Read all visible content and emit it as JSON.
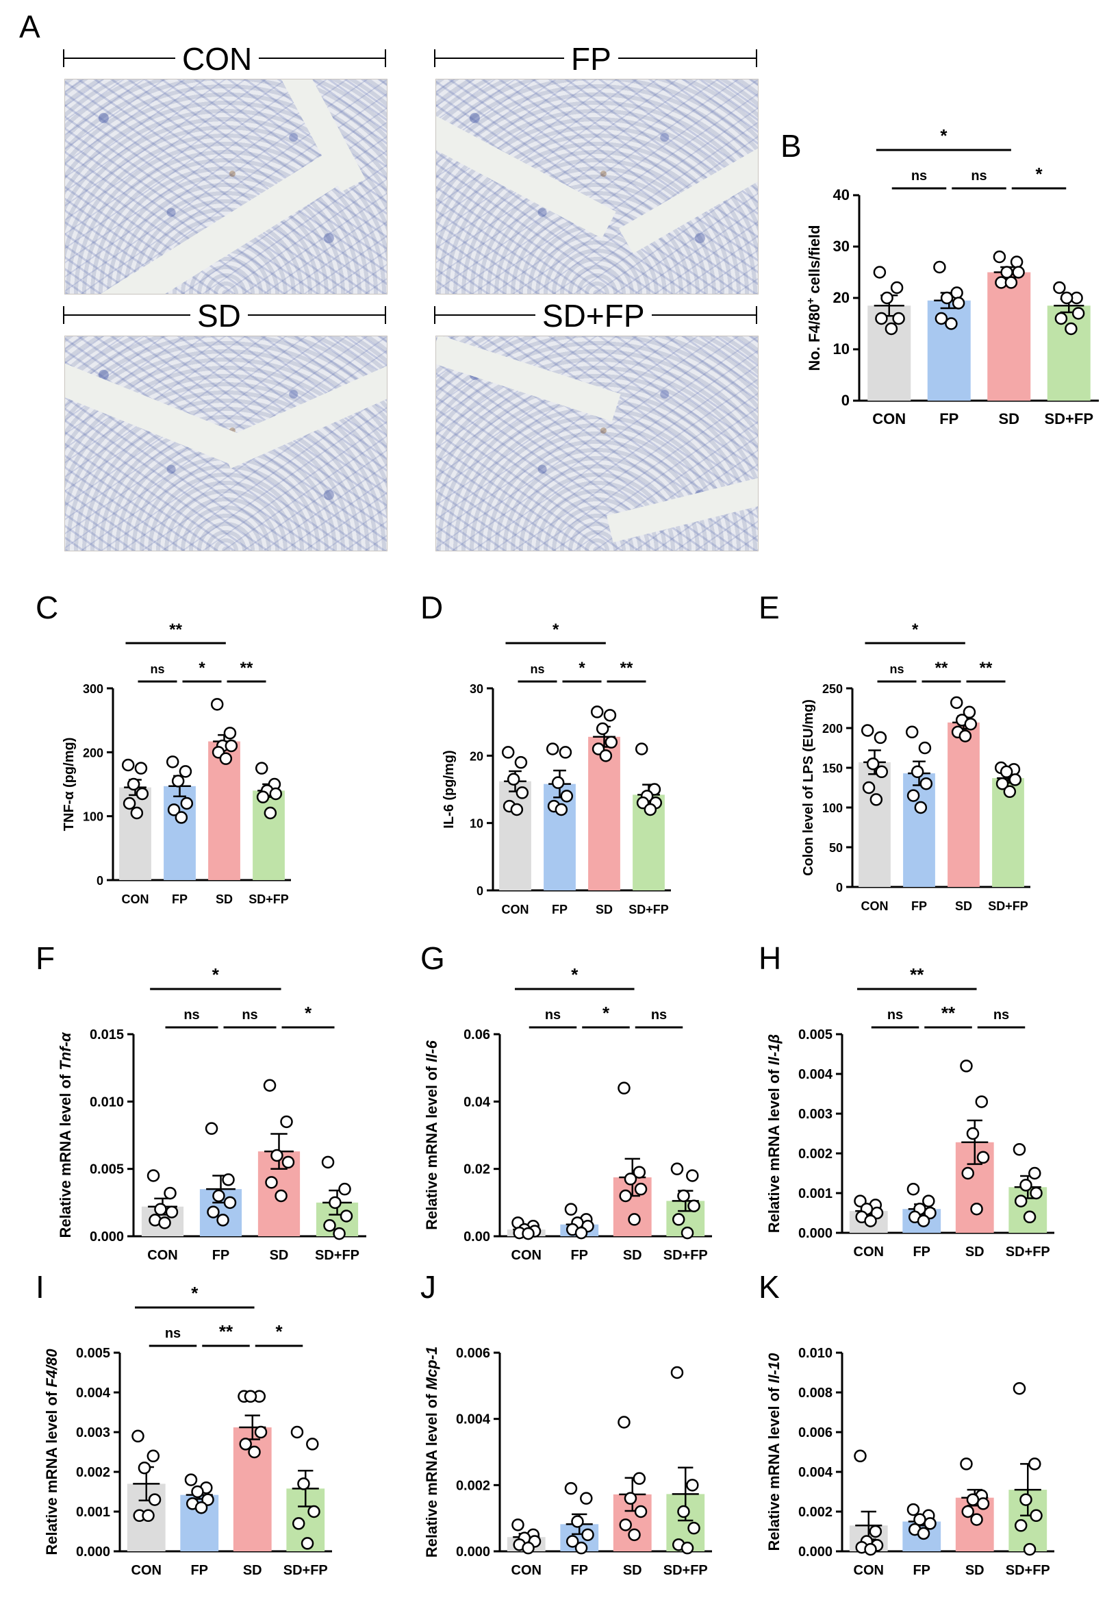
{
  "panel_labels": {
    "A": "A",
    "B": "B",
    "C": "C",
    "D": "D",
    "E": "E",
    "F": "F",
    "G": "G",
    "H": "H",
    "I": "I",
    "J": "J",
    "K": "K"
  },
  "histology": [
    {
      "label": "CON"
    },
    {
      "label": "FP"
    },
    {
      "label": "SD"
    },
    {
      "label": "SD+FP"
    }
  ],
  "colors": {
    "CON": "#dcdcdc",
    "FP": "#a8c8f0",
    "SD": "#f4a8a8",
    "SD+FP": "#bfe3a8"
  },
  "chart_data": [
    {
      "id": "B",
      "type": "bar",
      "categories": [
        "CON",
        "FP",
        "SD",
        "SD+FP"
      ],
      "ylabel_main": "No. F4/80",
      "ylabel_sup": "+",
      "ylabel_tail": " cells/field",
      "ylim": [
        0,
        40
      ],
      "yticks": [
        "0",
        "10",
        "20",
        "30",
        "40"
      ],
      "means": [
        18.5,
        19.5,
        25.0,
        18.5
      ],
      "sems": [
        2.0,
        1.5,
        1.0,
        1.3
      ],
      "points": [
        [
          25,
          22,
          20,
          16,
          16,
          14
        ],
        [
          26,
          21,
          20,
          19,
          16,
          15
        ],
        [
          28,
          27,
          25,
          25,
          23,
          23
        ],
        [
          22,
          20,
          20,
          17,
          16,
          14
        ]
      ],
      "annotations": [
        {
          "from": 0,
          "to": 2,
          "text": "*"
        },
        {
          "from": 0,
          "to": 1,
          "text": "ns"
        },
        {
          "from": 1,
          "to": 2,
          "text": "ns"
        },
        {
          "from": 2,
          "to": 3,
          "text": "*"
        }
      ]
    },
    {
      "id": "C",
      "type": "bar",
      "categories": [
        "CON",
        "FP",
        "SD",
        "SD+FP"
      ],
      "ylabel_main": "TNF-α (pg/mg)",
      "ylim": [
        0,
        300
      ],
      "yticks": [
        "0",
        "100",
        "200",
        "300"
      ],
      "means": [
        145,
        147,
        217,
        140
      ],
      "sems": [
        12,
        16,
        10,
        10
      ],
      "points": [
        [
          180,
          175,
          150,
          135,
          120,
          105
        ],
        [
          185,
          170,
          155,
          120,
          110,
          98
        ],
        [
          275,
          230,
          210,
          210,
          200,
          190
        ],
        [
          175,
          150,
          140,
          135,
          130,
          105
        ]
      ],
      "annotations": [
        {
          "from": 0,
          "to": 2,
          "text": "**"
        },
        {
          "from": 0,
          "to": 1,
          "text": "ns"
        },
        {
          "from": 1,
          "to": 2,
          "text": "*"
        },
        {
          "from": 2,
          "to": 3,
          "text": "**"
        }
      ]
    },
    {
      "id": "D",
      "type": "bar",
      "categories": [
        "CON",
        "FP",
        "SD",
        "SD+FP"
      ],
      "ylabel_main": "IL-6 (pg/mg)",
      "ylim": [
        0,
        30
      ],
      "yticks": [
        "0",
        "10",
        "20",
        "30"
      ],
      "means": [
        16.2,
        15.8,
        22.8,
        14.2
      ],
      "sems": [
        1.5,
        2.0,
        1.5,
        1.5
      ],
      "points": [
        [
          20.5,
          19,
          16.5,
          14.5,
          12.5,
          12
        ],
        [
          21,
          20.5,
          16,
          14,
          12.5,
          12
        ],
        [
          26.5,
          26,
          24,
          22,
          21,
          20
        ],
        [
          21,
          15,
          14,
          13,
          13,
          12
        ]
      ],
      "annotations": [
        {
          "from": 0,
          "to": 2,
          "text": "*"
        },
        {
          "from": 0,
          "to": 1,
          "text": "ns"
        },
        {
          "from": 1,
          "to": 2,
          "text": "*"
        },
        {
          "from": 2,
          "to": 3,
          "text": "**"
        }
      ]
    },
    {
      "id": "E",
      "type": "bar",
      "categories": [
        "CON",
        "FP",
        "SD",
        "SD+FP"
      ],
      "ylabel_main": "Colon level of LPS (EU/mg)",
      "ylim": [
        0,
        250
      ],
      "yticks": [
        "0",
        "50",
        "100",
        "150",
        "200",
        "250"
      ],
      "means": [
        157,
        143,
        207,
        137
      ],
      "sems": [
        15,
        15,
        8,
        6
      ],
      "points": [
        [
          197,
          188,
          155,
          145,
          125,
          110
        ],
        [
          195,
          175,
          145,
          130,
          115,
          100
        ],
        [
          232,
          220,
          210,
          205,
          195,
          190
        ],
        [
          150,
          148,
          145,
          135,
          130,
          120
        ]
      ],
      "annotations": [
        {
          "from": 0,
          "to": 2,
          "text": "*"
        },
        {
          "from": 0,
          "to": 1,
          "text": "ns"
        },
        {
          "from": 1,
          "to": 2,
          "text": "**"
        },
        {
          "from": 2,
          "to": 3,
          "text": "**"
        }
      ]
    },
    {
      "id": "F",
      "type": "bar",
      "categories": [
        "CON",
        "FP",
        "SD",
        "SD+FP"
      ],
      "ylabel_main": "Relative mRNA level of ",
      "ylabel_italic": "Tnf-α",
      "ylim": [
        0,
        0.015
      ],
      "yticks": [
        "0.000",
        "0.005",
        "0.010",
        "0.015"
      ],
      "means": [
        0.0022,
        0.0035,
        0.0063,
        0.0025
      ],
      "sems": [
        0.0006,
        0.001,
        0.0013,
        0.0009
      ],
      "points": [
        [
          0.0045,
          0.0032,
          0.002,
          0.0018,
          0.0012,
          0.001
        ],
        [
          0.008,
          0.0042,
          0.003,
          0.0025,
          0.0018,
          0.0012
        ],
        [
          0.0112,
          0.0085,
          0.006,
          0.0055,
          0.004,
          0.003
        ],
        [
          0.0055,
          0.0035,
          0.0025,
          0.0015,
          0.0008,
          0.0002
        ]
      ],
      "annotations": [
        {
          "from": 0,
          "to": 2,
          "text": "*"
        },
        {
          "from": 0,
          "to": 1,
          "text": "ns"
        },
        {
          "from": 1,
          "to": 2,
          "text": "ns"
        },
        {
          "from": 2,
          "to": 3,
          "text": "*"
        }
      ]
    },
    {
      "id": "G",
      "type": "bar",
      "categories": [
        "CON",
        "FP",
        "SD",
        "SD+FP"
      ],
      "ylabel_main": "Relative mRNA level of ",
      "ylabel_italic": "Il-6",
      "ylim": [
        0,
        0.06
      ],
      "yticks": [
        "0.00",
        "0.02",
        "0.04",
        "0.06"
      ],
      "means": [
        0.002,
        0.0035,
        0.0175,
        0.0105
      ],
      "sems": [
        0.0005,
        0.001,
        0.0055,
        0.003
      ],
      "points": [
        [
          0.004,
          0.003,
          0.002,
          0.0015,
          0.001,
          0.0008
        ],
        [
          0.008,
          0.005,
          0.004,
          0.003,
          0.002,
          0.001
        ],
        [
          0.044,
          0.019,
          0.017,
          0.014,
          0.012,
          0.005
        ],
        [
          0.02,
          0.018,
          0.012,
          0.009,
          0.005,
          0.001
        ]
      ],
      "annotations": [
        {
          "from": 0,
          "to": 2,
          "text": "*"
        },
        {
          "from": 0,
          "to": 1,
          "text": "ns"
        },
        {
          "from": 1,
          "to": 2,
          "text": "*"
        },
        {
          "from": 2,
          "to": 3,
          "text": "ns"
        }
      ]
    },
    {
      "id": "H",
      "type": "bar",
      "categories": [
        "CON",
        "FP",
        "SD",
        "SD+FP"
      ],
      "ylabel_main": "Relative mRNA level of ",
      "ylabel_italic": "Il-1β",
      "ylim": [
        0,
        0.005
      ],
      "yticks": [
        "0.000",
        "0.001",
        "0.002",
        "0.003",
        "0.004",
        "0.005"
      ],
      "means": [
        0.00055,
        0.0006,
        0.00228,
        0.00115
      ],
      "sems": [
        0.0001,
        0.00012,
        0.00055,
        0.00028
      ],
      "points": [
        [
          0.0008,
          0.0007,
          0.0006,
          0.0005,
          0.0004,
          0.0003
        ],
        [
          0.0011,
          0.0008,
          0.0006,
          0.0005,
          0.0004,
          0.0003
        ],
        [
          0.0042,
          0.0033,
          0.0025,
          0.0019,
          0.0015,
          0.0006
        ],
        [
          0.0021,
          0.0015,
          0.0012,
          0.001,
          0.0008,
          0.0004
        ]
      ],
      "annotations": [
        {
          "from": 0,
          "to": 2,
          "text": "**"
        },
        {
          "from": 0,
          "to": 1,
          "text": "ns"
        },
        {
          "from": 1,
          "to": 2,
          "text": "**"
        },
        {
          "from": 2,
          "to": 3,
          "text": "ns"
        }
      ]
    },
    {
      "id": "I",
      "type": "bar",
      "categories": [
        "CON",
        "FP",
        "SD",
        "SD+FP"
      ],
      "ylabel_main": "Relative mRNA level of ",
      "ylabel_italic": "F4/80",
      "ylim": [
        0,
        0.005
      ],
      "yticks": [
        "0.000",
        "0.001",
        "0.002",
        "0.003",
        "0.004",
        "0.005"
      ],
      "means": [
        0.0017,
        0.00142,
        0.00312,
        0.00158
      ],
      "sems": [
        0.00042,
        0.0001,
        0.0003,
        0.00045
      ],
      "points": [
        [
          0.0029,
          0.0024,
          0.0021,
          0.0013,
          0.0009,
          0.0009
        ],
        [
          0.0018,
          0.0016,
          0.0015,
          0.0013,
          0.0012,
          0.0011
        ],
        [
          0.0039,
          0.0039,
          0.0039,
          0.003,
          0.0027,
          0.0025
        ],
        [
          0.003,
          0.0027,
          0.0017,
          0.001,
          0.0007,
          0.0002
        ]
      ],
      "annotations": [
        {
          "from": 0,
          "to": 2,
          "text": "*"
        },
        {
          "from": 0,
          "to": 1,
          "text": "ns"
        },
        {
          "from": 1,
          "to": 2,
          "text": "**"
        },
        {
          "from": 2,
          "to": 3,
          "text": "*"
        }
      ]
    },
    {
      "id": "J",
      "type": "bar",
      "categories": [
        "CON",
        "FP",
        "SD",
        "SD+FP"
      ],
      "ylabel_main": "Relative mRNA level of ",
      "ylabel_italic": "Mcp-1",
      "ylim": [
        0,
        0.006
      ],
      "yticks": [
        "0.000",
        "0.002",
        "0.004",
        "0.006"
      ],
      "means": [
        0.00043,
        0.00082,
        0.00172,
        0.00173
      ],
      "sems": [
        0.0001,
        0.0003,
        0.0005,
        0.0008
      ],
      "points": [
        [
          0.0008,
          0.0005,
          0.0004,
          0.0003,
          0.0002,
          0.0001
        ],
        [
          0.0019,
          0.0016,
          0.0009,
          0.0005,
          0.0003,
          0.0001
        ],
        [
          0.0039,
          0.0022,
          0.0016,
          0.0012,
          0.0008,
          0.0005
        ],
        [
          0.0054,
          0.002,
          0.0012,
          0.0007,
          0.0002,
          0.0001
        ]
      ],
      "annotations": []
    },
    {
      "id": "K",
      "type": "bar",
      "categories": [
        "CON",
        "FP",
        "SD",
        "SD+FP"
      ],
      "ylabel_main": "Relative mRNA level of ",
      "ylabel_italic": "Il-10",
      "ylim": [
        0,
        0.01
      ],
      "yticks": [
        "0.000",
        "0.002",
        "0.004",
        "0.006",
        "0.008",
        "0.010"
      ],
      "means": [
        0.0013,
        0.0015,
        0.0027,
        0.0031
      ],
      "sems": [
        0.0007,
        0.0002,
        0.0004,
        0.0013
      ],
      "points": [
        [
          0.0048,
          0.001,
          0.0005,
          0.0003,
          0.0002,
          0.0001
        ],
        [
          0.0021,
          0.0018,
          0.0016,
          0.0014,
          0.0011,
          0.0009
        ],
        [
          0.0044,
          0.0028,
          0.0026,
          0.0024,
          0.002,
          0.0016
        ],
        [
          0.0082,
          0.0044,
          0.0026,
          0.0018,
          0.0013,
          0.0001
        ]
      ],
      "annotations": []
    }
  ]
}
